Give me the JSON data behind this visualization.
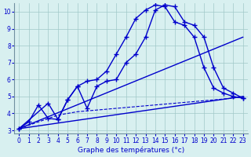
{
  "xlabel": "Graphe des températures (°c)",
  "bg_color": "#d8f0f0",
  "line_color": "#0000cc",
  "xlim": [
    0,
    23
  ],
  "ylim": [
    3,
    10.5
  ],
  "xticks": [
    0,
    1,
    2,
    3,
    4,
    5,
    6,
    7,
    8,
    9,
    10,
    11,
    12,
    13,
    14,
    15,
    16,
    17,
    18,
    19,
    20,
    21,
    22,
    23
  ],
  "yticks": [
    3,
    4,
    5,
    6,
    7,
    8,
    9,
    10
  ],
  "curve1_x": [
    0,
    1,
    2,
    3,
    4,
    5,
    6,
    7,
    8,
    9,
    10,
    11,
    12,
    13,
    14,
    15,
    16,
    17,
    18,
    19,
    20,
    21,
    22,
    23
  ],
  "curve1_y": [
    3.1,
    3.5,
    4.5,
    3.7,
    3.65,
    4.8,
    5.6,
    5.9,
    6.0,
    6.5,
    7.5,
    8.5,
    9.6,
    10.1,
    10.4,
    10.3,
    9.4,
    9.2,
    8.5,
    6.7,
    5.5,
    5.2,
    5.0,
    4.9
  ],
  "curve2_x": [
    0,
    3,
    4,
    5,
    6,
    7,
    8,
    9,
    10,
    11,
    12,
    13,
    14,
    15,
    16,
    17,
    18,
    19,
    20,
    21,
    22,
    23
  ],
  "curve2_y": [
    3.1,
    4.6,
    3.65,
    4.8,
    5.6,
    4.3,
    5.6,
    5.9,
    6.0,
    7.0,
    7.5,
    8.5,
    10.1,
    10.4,
    10.3,
    9.4,
    9.2,
    8.5,
    6.7,
    5.5,
    5.2,
    4.9
  ],
  "line1_x": [
    0,
    23
  ],
  "line1_y": [
    3.1,
    8.5
  ],
  "line2_x": [
    0,
    23
  ],
  "line2_y": [
    3.1,
    5.0
  ],
  "dashed_x": [
    0,
    1,
    2,
    3,
    4,
    5,
    6,
    7,
    8,
    9,
    10,
    11,
    12,
    13,
    14,
    15,
    16,
    17,
    18,
    19,
    20,
    21,
    22,
    23
  ],
  "dashed_y": [
    3.1,
    3.3,
    3.5,
    3.7,
    3.9,
    4.0,
    4.1,
    4.15,
    4.2,
    4.25,
    4.3,
    4.35,
    4.4,
    4.45,
    4.5,
    4.55,
    4.6,
    4.65,
    4.7,
    4.75,
    4.8,
    4.85,
    4.9,
    5.0
  ]
}
